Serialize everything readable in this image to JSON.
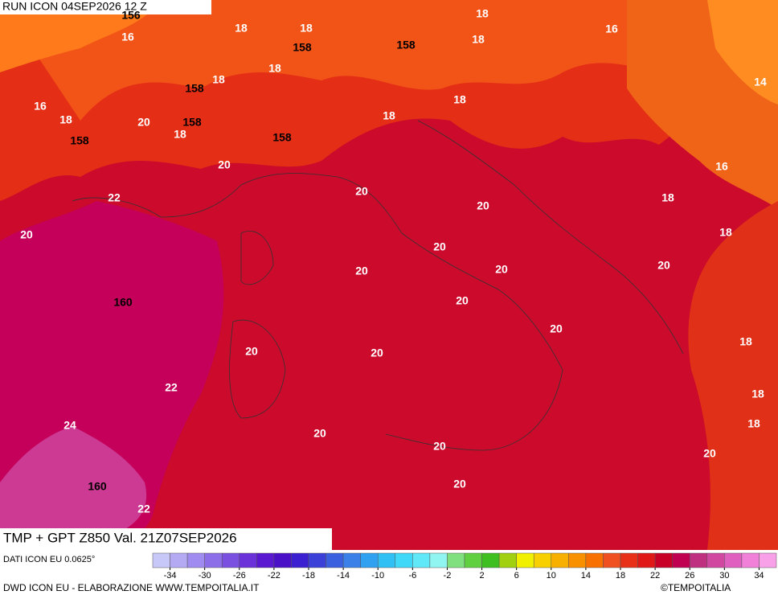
{
  "header": {
    "run": "RUN ICON 04SEP2026 12 Z"
  },
  "footer": {
    "title": "TMP + GPT Z850 Val. 21Z07SEP2026",
    "resolution": "DATI ICON EU 0.0625°",
    "credits": "DWD ICON EU - ELABORAZIONE WWW.TEMPOITALIA.IT",
    "copyright": "©TEMPOITALIA"
  },
  "map": {
    "temperature_labels": [
      "18",
      "16",
      "18",
      "18",
      "16",
      "18",
      "18",
      "18",
      "14",
      "16",
      "18",
      "20",
      "18",
      "18",
      "18",
      "20",
      "16",
      "22",
      "20",
      "20",
      "18",
      "20",
      "18",
      "20",
      "20",
      "20",
      "20",
      "20",
      "20",
      "18",
      "20",
      "20",
      "22",
      "18",
      "24",
      "18",
      "20",
      "20",
      "20",
      "20",
      "22"
    ],
    "geopotential_labels": [
      "156",
      "158",
      "158",
      "158",
      "158",
      "158",
      "158",
      "160",
      "160"
    ]
  },
  "colorbar": {
    "ticks": [
      -34,
      -30,
      -26,
      -22,
      -18,
      -14,
      -10,
      -6,
      -2,
      2,
      6,
      10,
      14,
      18,
      22,
      26,
      30,
      34
    ],
    "colors": [
      "#c8c8f8",
      "#b4aaf4",
      "#a08cf0",
      "#8c6ee8",
      "#7a50e0",
      "#6a32d8",
      "#5a18d0",
      "#4a10c8",
      "#3a20d0",
      "#3a40d8",
      "#3a60e0",
      "#3a80e8",
      "#30a0f0",
      "#30c0f4",
      "#40d8f8",
      "#60e8f8",
      "#90f4f0",
      "#80e080",
      "#60d040",
      "#40c020",
      "#a0d010",
      "#f0f000",
      "#f8d000",
      "#f8b000",
      "#f89000",
      "#f87000",
      "#f05020",
      "#e83018",
      "#e01818",
      "#c80028",
      "#c00050",
      "#c03080",
      "#d048a0",
      "#e060c0",
      "#f080d8",
      "#f8a0e8"
    ]
  }
}
